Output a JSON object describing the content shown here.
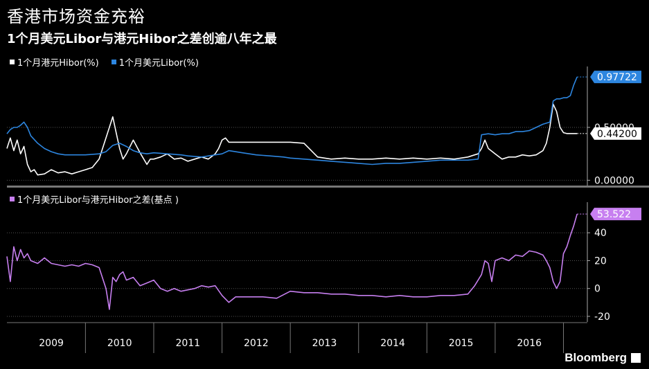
{
  "header": {
    "title": "香港市场资金充裕",
    "subtitle": "1个月美元Libor与港元Hibor之差创逾八年之最"
  },
  "brand": {
    "label": "Bloomberg",
    "icon": "bloomberg-chart-icon"
  },
  "colors": {
    "hibor": "#ffffff",
    "libor": "#2d86e0",
    "spread": "#c77ff0",
    "background": "#000000"
  },
  "chart_data": [
    {
      "type": "line",
      "legend_position": "top-left",
      "series": [
        {
          "name": "1个月港元Hibor(%)",
          "color": "#ffffff",
          "x": [
            2008.85,
            2008.9,
            2008.95,
            2009.0,
            2009.05,
            2009.1,
            2009.15,
            2009.2,
            2009.25,
            2009.3,
            2009.4,
            2009.5,
            2009.6,
            2009.7,
            2009.8,
            2009.9,
            2010.0,
            2010.1,
            2010.2,
            2010.3,
            2010.4,
            2010.45,
            2010.5,
            2010.55,
            2010.6,
            2010.7,
            2010.8,
            2010.9,
            2010.95,
            2011.0,
            2011.1,
            2011.2,
            2011.3,
            2011.4,
            2011.5,
            2011.6,
            2011.7,
            2011.8,
            2011.9,
            2011.95,
            2012.0,
            2012.05,
            2012.1,
            2012.2,
            2012.4,
            2012.6,
            2012.8,
            2013.0,
            2013.2,
            2013.4,
            2013.6,
            2013.8,
            2014.0,
            2014.2,
            2014.4,
            2014.6,
            2014.8,
            2015.0,
            2015.2,
            2015.4,
            2015.6,
            2015.7,
            2015.75,
            2015.8,
            2015.85,
            2015.9,
            2016.0,
            2016.1,
            2016.2,
            2016.3,
            2016.4,
            2016.5,
            2016.6,
            2016.7,
            2016.75,
            2016.8,
            2016.85,
            2016.9,
            2016.95,
            2017.0,
            2017.05,
            2017.1,
            2017.15,
            2017.2
          ],
          "values": [
            0.3,
            0.4,
            0.28,
            0.38,
            0.25,
            0.32,
            0.15,
            0.08,
            0.1,
            0.05,
            0.06,
            0.1,
            0.07,
            0.08,
            0.06,
            0.08,
            0.1,
            0.12,
            0.2,
            0.4,
            0.6,
            0.45,
            0.3,
            0.2,
            0.25,
            0.38,
            0.26,
            0.15,
            0.2,
            0.2,
            0.22,
            0.25,
            0.2,
            0.21,
            0.18,
            0.2,
            0.22,
            0.2,
            0.25,
            0.3,
            0.38,
            0.4,
            0.36,
            0.36,
            0.36,
            0.36,
            0.36,
            0.36,
            0.35,
            0.22,
            0.2,
            0.21,
            0.2,
            0.2,
            0.21,
            0.2,
            0.21,
            0.2,
            0.21,
            0.2,
            0.22,
            0.24,
            0.25,
            0.3,
            0.38,
            0.3,
            0.25,
            0.2,
            0.22,
            0.22,
            0.24,
            0.23,
            0.24,
            0.28,
            0.35,
            0.5,
            0.72,
            0.65,
            0.5,
            0.45,
            0.442,
            0.442,
            0.442,
            0.442
          ]
        },
        {
          "name": "1个月美元Libor(%)",
          "color": "#2d86e0",
          "x": [
            2008.85,
            2008.9,
            2008.95,
            2009.0,
            2009.05,
            2009.1,
            2009.15,
            2009.2,
            2009.3,
            2009.4,
            2009.5,
            2009.6,
            2009.7,
            2009.8,
            2009.9,
            2010.0,
            2010.2,
            2010.3,
            2010.4,
            2010.5,
            2010.6,
            2010.7,
            2010.8,
            2010.9,
            2011.0,
            2011.2,
            2011.4,
            2011.5,
            2011.7,
            2011.9,
            2012.0,
            2012.1,
            2012.3,
            2012.5,
            2012.7,
            2012.9,
            2013.0,
            2013.2,
            2013.4,
            2013.6,
            2013.8,
            2014.0,
            2014.2,
            2014.4,
            2014.6,
            2014.8,
            2015.0,
            2015.2,
            2015.4,
            2015.6,
            2015.75,
            2015.8,
            2015.9,
            2016.0,
            2016.1,
            2016.2,
            2016.3,
            2016.4,
            2016.5,
            2016.6,
            2016.7,
            2016.8,
            2016.85,
            2016.9,
            2016.95,
            2017.0,
            2017.05,
            2017.1,
            2017.15,
            2017.2
          ],
          "values": [
            0.44,
            0.48,
            0.5,
            0.5,
            0.52,
            0.55,
            0.5,
            0.42,
            0.35,
            0.3,
            0.27,
            0.25,
            0.24,
            0.24,
            0.24,
            0.24,
            0.25,
            0.27,
            0.33,
            0.35,
            0.32,
            0.28,
            0.26,
            0.25,
            0.26,
            0.25,
            0.24,
            0.23,
            0.22,
            0.24,
            0.25,
            0.28,
            0.26,
            0.24,
            0.23,
            0.22,
            0.21,
            0.2,
            0.19,
            0.18,
            0.17,
            0.16,
            0.15,
            0.16,
            0.16,
            0.17,
            0.18,
            0.19,
            0.19,
            0.19,
            0.2,
            0.43,
            0.44,
            0.43,
            0.44,
            0.44,
            0.46,
            0.46,
            0.47,
            0.5,
            0.53,
            0.55,
            0.75,
            0.77,
            0.77,
            0.78,
            0.78,
            0.8,
            0.9,
            0.977
          ]
        }
      ],
      "xlim": [
        2008.85,
        2017.35
      ],
      "ylim": [
        -0.05,
        1.05
      ],
      "yticks": [
        0,
        0.5
      ],
      "ytick_labels": [
        "0.00000",
        "0.50000"
      ],
      "last_value_labels": [
        {
          "series": "1个月美元Libor(%)",
          "value": "0.97722"
        },
        {
          "series": "1个月港元Hibor(%)",
          "value": "0.44200"
        }
      ]
    },
    {
      "type": "line",
      "legend_position": "top-left",
      "series": [
        {
          "name": "1个月美元Libor与港元Hibor之差(基点 )",
          "color": "#c77ff0",
          "x": [
            2008.85,
            2008.9,
            2008.95,
            2009.0,
            2009.05,
            2009.1,
            2009.15,
            2009.2,
            2009.3,
            2009.4,
            2009.5,
            2009.6,
            2009.7,
            2009.8,
            2009.9,
            2010.0,
            2010.1,
            2010.2,
            2010.3,
            2010.35,
            2010.4,
            2010.45,
            2010.5,
            2010.55,
            2010.6,
            2010.7,
            2010.8,
            2010.9,
            2011.0,
            2011.1,
            2011.2,
            2011.3,
            2011.4,
            2011.5,
            2011.6,
            2011.7,
            2011.8,
            2011.9,
            2012.0,
            2012.1,
            2012.2,
            2012.4,
            2012.6,
            2012.8,
            2013.0,
            2013.2,
            2013.4,
            2013.6,
            2013.8,
            2014.0,
            2014.2,
            2014.4,
            2014.6,
            2014.8,
            2015.0,
            2015.2,
            2015.4,
            2015.6,
            2015.7,
            2015.8,
            2015.85,
            2015.9,
            2015.95,
            2016.0,
            2016.1,
            2016.2,
            2016.3,
            2016.4,
            2016.5,
            2016.6,
            2016.7,
            2016.75,
            2016.8,
            2016.85,
            2016.9,
            2016.95,
            2017.0,
            2017.05,
            2017.1,
            2017.15,
            2017.2
          ],
          "values": [
            23,
            5,
            30,
            20,
            28,
            22,
            25,
            20,
            18,
            22,
            18,
            17,
            16,
            17,
            16,
            18,
            17,
            15,
            0,
            -15,
            8,
            5,
            10,
            12,
            6,
            8,
            2,
            4,
            6,
            0,
            -2,
            0,
            -2,
            -1,
            0,
            2,
            1,
            2,
            -5,
            -10,
            -6,
            -6,
            -6,
            -7,
            -2,
            -3,
            -3,
            -4,
            -4,
            -5,
            -5,
            -6,
            -5,
            -6,
            -6,
            -5,
            -5,
            -4,
            2,
            10,
            20,
            18,
            5,
            20,
            22,
            20,
            24,
            23,
            27,
            26,
            24,
            20,
            15,
            5,
            0,
            5,
            25,
            30,
            38,
            45,
            53.5
          ]
        }
      ],
      "xlim": [
        2008.85,
        2017.35
      ],
      "ylim": [
        -24,
        60
      ],
      "yticks": [
        -20,
        0,
        20,
        40
      ],
      "ytick_labels": [
        "-20",
        "0",
        "20",
        "40"
      ],
      "last_value_labels": [
        {
          "series": "1个月美元Libor与港元Hibor之差(基点 )",
          "value": "53.522"
        }
      ]
    }
  ],
  "x_axis": {
    "labels": [
      "2009",
      "2010",
      "2011",
      "2012",
      "2013",
      "2014",
      "2015",
      "2016"
    ],
    "label_positions": [
      2009.5,
      2010.5,
      2011.5,
      2012.5,
      2013.5,
      2014.5,
      2015.5,
      2016.5
    ],
    "dividers": [
      2010,
      2011,
      2012,
      2013,
      2014,
      2015,
      2016,
      2017
    ]
  }
}
